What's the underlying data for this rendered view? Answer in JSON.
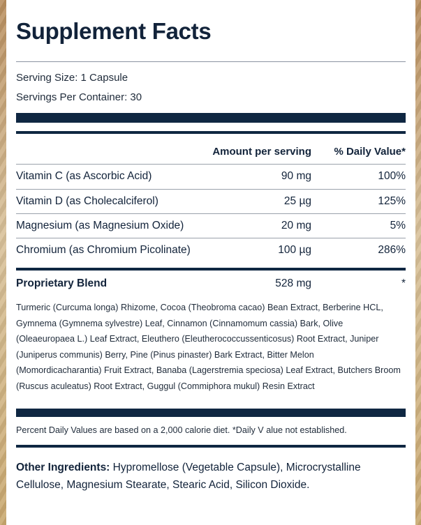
{
  "title": "Supplement Facts",
  "serving_size": "Serving Size: 1 Capsule",
  "servings_per_container": "Servings Per Container: 30",
  "columns": {
    "amount": "Amount per serving",
    "daily_value": "% Daily Value*"
  },
  "nutrients": [
    {
      "name": "Vitamin C (as Ascorbic Acid)",
      "amount": "90 mg",
      "dv": "100%"
    },
    {
      "name": "Vitamin D (as Cholecalciferol)",
      "amount": "25 µg",
      "dv": "125%"
    },
    {
      "name": "Magnesium (as Magnesium Oxide)",
      "amount": "20 mg",
      "dv": "5%"
    },
    {
      "name": "Chromium (as Chromium Picolinate)",
      "amount": "100 µg",
      "dv": "286%"
    }
  ],
  "blend": {
    "name": "Proprietary Blend",
    "amount": "528 mg",
    "dv": "*",
    "ingredients": "Turmeric (Curcuma longa) Rhizome, Cocoa (Theobroma cacao) Bean Extract, Berberine HCL, Gymnema (Gymnema sylvestre) Leaf, Cinnamon (Cinnamomum cassia) Bark, Olive (Oleaeuropaea L.) Leaf Extract, Eleuthero (Eleutherococcussenticosus) Root Extract, Juniper (Juniperus communis) Berry, Pine (Pinus pinaster) Bark Extract, Bitter Melon (Momordicacharantia) Fruit Extract, Banaba (Lagerstremia speciosa) Leaf Extract, Butchers Broom (Ruscus aculeatus) Root Extract, Guggul (Commiphora mukul) Resin Extract"
  },
  "footnote": "Percent Daily Values are based on a 2,000 calorie diet. *Daily V alue not established.",
  "other_ingredients": {
    "label": "Other Ingredients:",
    "text": " Hypromellose (Vegetable Capsule), Microcrystalline Cellulose, Magnesium Stearate, Stearic Acid, Silicon Dioxide."
  }
}
